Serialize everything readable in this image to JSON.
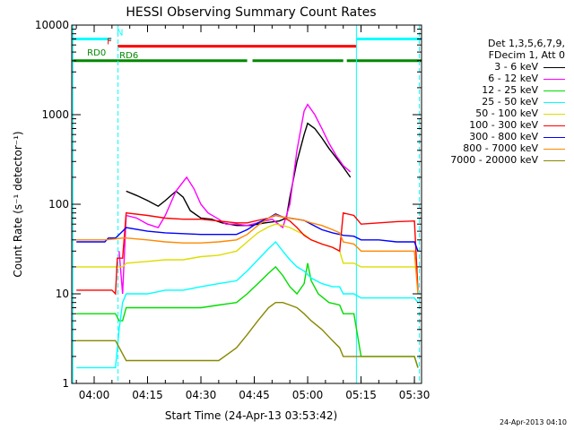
{
  "chart_data": {
    "type": "line",
    "title": "HESSI Observing Summary Count Rates",
    "xlabel": "Start Time (24-Apr-13 03:53:42)",
    "ylabel": "Count Rate (s⁻¹ detector⁻¹)",
    "yscale": "log",
    "xlim_minutes": [
      53.7,
      152.0
    ],
    "ylim": [
      1,
      10000
    ],
    "x_ticks": [
      {
        "minute": 60,
        "label": "04:00"
      },
      {
        "minute": 75,
        "label": "04:15"
      },
      {
        "minute": 90,
        "label": "04:30"
      },
      {
        "minute": 105,
        "label": "04:45"
      },
      {
        "minute": 120,
        "label": "05:00"
      },
      {
        "minute": 135,
        "label": "05:15"
      },
      {
        "minute": 150,
        "label": "05:30"
      }
    ],
    "y_ticks": [
      {
        "value": 1,
        "label": "1"
      },
      {
        "value": 10,
        "label": "10"
      },
      {
        "value": 100,
        "label": "100"
      },
      {
        "value": 1000,
        "label": "1000"
      },
      {
        "value": 10000,
        "label": "10000"
      }
    ],
    "legend_header": [
      "Det 1,3,5,6,7,9,",
      "FDecim 1, Att 0"
    ],
    "series": [
      {
        "name": "3 - 6 keV",
        "color": "#000000",
        "points": [
          [
            68.5,
            null
          ],
          [
            69,
            140
          ],
          [
            72,
            125
          ],
          [
            75,
            110
          ],
          [
            78,
            95
          ],
          [
            80,
            110
          ],
          [
            83,
            140
          ],
          [
            85,
            120
          ],
          [
            87,
            85
          ],
          [
            90,
            70
          ],
          [
            93,
            68
          ],
          [
            96,
            62
          ],
          [
            100,
            58
          ],
          [
            104,
            58
          ],
          [
            108,
            62
          ],
          [
            112,
            65
          ],
          [
            114,
            70
          ],
          [
            115,
            120
          ],
          [
            117,
            300
          ],
          [
            119,
            600
          ],
          [
            120,
            800
          ],
          [
            122,
            700
          ],
          [
            124,
            550
          ],
          [
            126,
            420
          ],
          [
            128,
            330
          ],
          [
            130,
            260
          ],
          [
            132,
            200
          ],
          [
            133,
            null
          ]
        ]
      },
      {
        "name": "6 - 12 keV",
        "color": "#ff00ff",
        "points": [
          [
            66.5,
            null
          ],
          [
            67,
            30
          ],
          [
            68,
            10
          ],
          [
            69,
            75
          ],
          [
            72,
            70
          ],
          [
            75,
            60
          ],
          [
            78,
            55
          ],
          [
            80,
            75
          ],
          [
            83,
            140
          ],
          [
            86,
            200
          ],
          [
            88,
            150
          ],
          [
            90,
            100
          ],
          [
            92,
            80
          ],
          [
            95,
            68
          ],
          [
            97,
            60
          ],
          [
            100,
            60
          ],
          [
            103,
            58
          ],
          [
            106,
            62
          ],
          [
            110,
            68
          ],
          [
            113,
            55
          ],
          [
            115,
            100
          ],
          [
            117,
            400
          ],
          [
            119,
            1100
          ],
          [
            120,
            1300
          ],
          [
            122,
            1000
          ],
          [
            124,
            700
          ],
          [
            126,
            480
          ],
          [
            128,
            350
          ],
          [
            130,
            270
          ],
          [
            132,
            230
          ],
          [
            133,
            null
          ]
        ]
      },
      {
        "name": "12 - 25 keV",
        "color": "#00dd00",
        "points": [
          [
            55,
            6
          ],
          [
            66,
            6
          ],
          [
            67,
            5
          ],
          [
            68,
            5
          ],
          [
            69,
            7
          ],
          [
            75,
            7
          ],
          [
            80,
            7
          ],
          [
            85,
            7
          ],
          [
            90,
            7
          ],
          [
            95,
            7.5
          ],
          [
            100,
            8
          ],
          [
            103,
            10
          ],
          [
            106,
            13
          ],
          [
            109,
            17
          ],
          [
            111,
            20
          ],
          [
            113,
            16
          ],
          [
            115,
            12
          ],
          [
            117,
            10
          ],
          [
            119,
            13
          ],
          [
            120,
            22
          ],
          [
            121,
            14
          ],
          [
            123,
            10
          ],
          [
            126,
            8
          ],
          [
            129,
            7.5
          ],
          [
            130,
            6
          ],
          [
            133,
            6
          ],
          [
            135,
            2
          ],
          [
            140,
            2
          ],
          [
            145,
            2
          ],
          [
            150,
            2
          ],
          [
            151,
            1.5
          ]
        ]
      },
      {
        "name": "25 - 50 keV",
        "color": "#00ffff",
        "points": [
          [
            55,
            1.5
          ],
          [
            66,
            1.5
          ],
          [
            67,
            4
          ],
          [
            68,
            8
          ],
          [
            69,
            10
          ],
          [
            75,
            10
          ],
          [
            80,
            11
          ],
          [
            85,
            11
          ],
          [
            90,
            12
          ],
          [
            95,
            13
          ],
          [
            100,
            14
          ],
          [
            103,
            18
          ],
          [
            106,
            24
          ],
          [
            109,
            32
          ],
          [
            111,
            38
          ],
          [
            113,
            30
          ],
          [
            115,
            24
          ],
          [
            117,
            20
          ],
          [
            119,
            18
          ],
          [
            121,
            15
          ],
          [
            124,
            13
          ],
          [
            127,
            12
          ],
          [
            129,
            12
          ],
          [
            130,
            10
          ],
          [
            133,
            10
          ],
          [
            135,
            9
          ],
          [
            140,
            9
          ],
          [
            145,
            9
          ],
          [
            150,
            9
          ],
          [
            151,
            8
          ]
        ]
      },
      {
        "name": "50 - 100 keV",
        "color": "#dddd00",
        "points": [
          [
            55,
            20
          ],
          [
            66,
            20
          ],
          [
            68,
            20
          ],
          [
            69,
            22
          ],
          [
            75,
            23
          ],
          [
            80,
            24
          ],
          [
            85,
            24
          ],
          [
            90,
            26
          ],
          [
            95,
            27
          ],
          [
            100,
            30
          ],
          [
            103,
            38
          ],
          [
            106,
            48
          ],
          [
            109,
            56
          ],
          [
            111,
            60
          ],
          [
            113,
            58
          ],
          [
            115,
            55
          ],
          [
            117,
            50
          ],
          [
            119,
            46
          ],
          [
            121,
            40
          ],
          [
            124,
            36
          ],
          [
            127,
            33
          ],
          [
            129,
            30
          ],
          [
            130,
            22
          ],
          [
            133,
            22
          ],
          [
            135,
            20
          ],
          [
            140,
            20
          ],
          [
            145,
            20
          ],
          [
            150,
            20
          ],
          [
            151,
            19
          ]
        ]
      },
      {
        "name": "100 - 300 keV",
        "color": "#ff0000",
        "points": [
          [
            55,
            11
          ],
          [
            60,
            11
          ],
          [
            65,
            11
          ],
          [
            66,
            10
          ],
          [
            66.5,
            25
          ],
          [
            68,
            25
          ],
          [
            69,
            80
          ],
          [
            75,
            75
          ],
          [
            80,
            70
          ],
          [
            85,
            68
          ],
          [
            90,
            68
          ],
          [
            95,
            65
          ],
          [
            100,
            62
          ],
          [
            103,
            62
          ],
          [
            106,
            66
          ],
          [
            109,
            70
          ],
          [
            111,
            75
          ],
          [
            113,
            72
          ],
          [
            115,
            65
          ],
          [
            117,
            55
          ],
          [
            119,
            45
          ],
          [
            121,
            40
          ],
          [
            124,
            36
          ],
          [
            127,
            33
          ],
          [
            129,
            30
          ],
          [
            130,
            80
          ],
          [
            133,
            75
          ],
          [
            135,
            60
          ],
          [
            140,
            62
          ],
          [
            145,
            64
          ],
          [
            150,
            65
          ],
          [
            151,
            11
          ]
        ]
      },
      {
        "name": "300 - 800 keV",
        "color": "#0000ff",
        "points": [
          [
            55,
            38
          ],
          [
            60,
            38
          ],
          [
            63,
            38
          ],
          [
            64,
            42
          ],
          [
            66,
            42
          ],
          [
            68,
            50
          ],
          [
            69,
            55
          ],
          [
            75,
            50
          ],
          [
            80,
            48
          ],
          [
            85,
            47
          ],
          [
            90,
            46
          ],
          [
            95,
            46
          ],
          [
            100,
            46
          ],
          [
            103,
            52
          ],
          [
            106,
            62
          ],
          [
            109,
            70
          ],
          [
            111,
            78
          ],
          [
            113,
            72
          ],
          [
            115,
            70
          ],
          [
            117,
            68
          ],
          [
            119,
            66
          ],
          [
            121,
            60
          ],
          [
            124,
            52
          ],
          [
            127,
            48
          ],
          [
            129,
            46
          ],
          [
            130,
            45
          ],
          [
            133,
            44
          ],
          [
            135,
            40
          ],
          [
            140,
            40
          ],
          [
            145,
            38
          ],
          [
            150,
            38
          ],
          [
            151,
            30
          ]
        ]
      },
      {
        "name": "800 - 7000 keV",
        "color": "#ff8800",
        "points": [
          [
            55,
            40
          ],
          [
            60,
            40
          ],
          [
            63,
            40
          ],
          [
            66,
            41
          ],
          [
            68,
            42
          ],
          [
            69,
            42
          ],
          [
            75,
            40
          ],
          [
            80,
            38
          ],
          [
            85,
            37
          ],
          [
            90,
            37
          ],
          [
            95,
            38
          ],
          [
            100,
            40
          ],
          [
            103,
            46
          ],
          [
            106,
            58
          ],
          [
            109,
            70
          ],
          [
            111,
            76
          ],
          [
            113,
            72
          ],
          [
            115,
            70
          ],
          [
            117,
            68
          ],
          [
            119,
            66
          ],
          [
            121,
            62
          ],
          [
            124,
            58
          ],
          [
            127,
            52
          ],
          [
            129,
            48
          ],
          [
            130,
            38
          ],
          [
            133,
            36
          ],
          [
            135,
            30
          ],
          [
            140,
            30
          ],
          [
            145,
            30
          ],
          [
            150,
            30
          ],
          [
            151,
            10
          ]
        ]
      },
      {
        "name": "7000 - 20000 keV",
        "color": "#888800",
        "points": [
          [
            55,
            3
          ],
          [
            60,
            3
          ],
          [
            63,
            3
          ],
          [
            66,
            3
          ],
          [
            69,
            1.8
          ],
          [
            75,
            1.8
          ],
          [
            80,
            1.8
          ],
          [
            85,
            1.8
          ],
          [
            90,
            1.8
          ],
          [
            95,
            1.8
          ],
          [
            100,
            2.5
          ],
          [
            103,
            3.5
          ],
          [
            106,
            5
          ],
          [
            109,
            7
          ],
          [
            111,
            8
          ],
          [
            113,
            8
          ],
          [
            115,
            7.5
          ],
          [
            117,
            7
          ],
          [
            119,
            6
          ],
          [
            121,
            5
          ],
          [
            124,
            4
          ],
          [
            127,
            3
          ],
          [
            129,
            2.5
          ],
          [
            130,
            2
          ],
          [
            133,
            2
          ],
          [
            135,
            2
          ],
          [
            140,
            2
          ],
          [
            145,
            2
          ],
          [
            150,
            2
          ],
          [
            151,
            1.5
          ]
        ]
      }
    ],
    "flag_bars": [
      {
        "label": "N",
        "color": "#00ffff",
        "segments": [
          [
            53.7,
            64.8
          ],
          [
            133.8,
            152
          ]
        ],
        "level": 7000
      },
      {
        "label": "F",
        "color": "#ff0000",
        "segments": [
          [
            66.6,
            133.8
          ]
        ],
        "level": 5800
      },
      {
        "label": "RD0",
        "color": "#008800",
        "segments": [
          [
            53.7,
            66.6
          ]
        ],
        "level": 4000
      },
      {
        "label": "RD6",
        "color": "#008800",
        "segments": [
          [
            66.6,
            103
          ],
          [
            104.5,
            130
          ],
          [
            131,
            152
          ]
        ],
        "level": 4000
      }
    ],
    "vlines": [
      {
        "minute": 54.0,
        "color": "#00ffff",
        "style": "solid"
      },
      {
        "minute": 66.7,
        "color": "#00ffff",
        "style": "dashed"
      },
      {
        "minute": 133.7,
        "color": "#00ffff",
        "style": "solid"
      },
      {
        "minute": 151.4,
        "color": "#00ffff",
        "style": "dashed"
      }
    ]
  },
  "stamp": "24-Apr-2013 04:10"
}
